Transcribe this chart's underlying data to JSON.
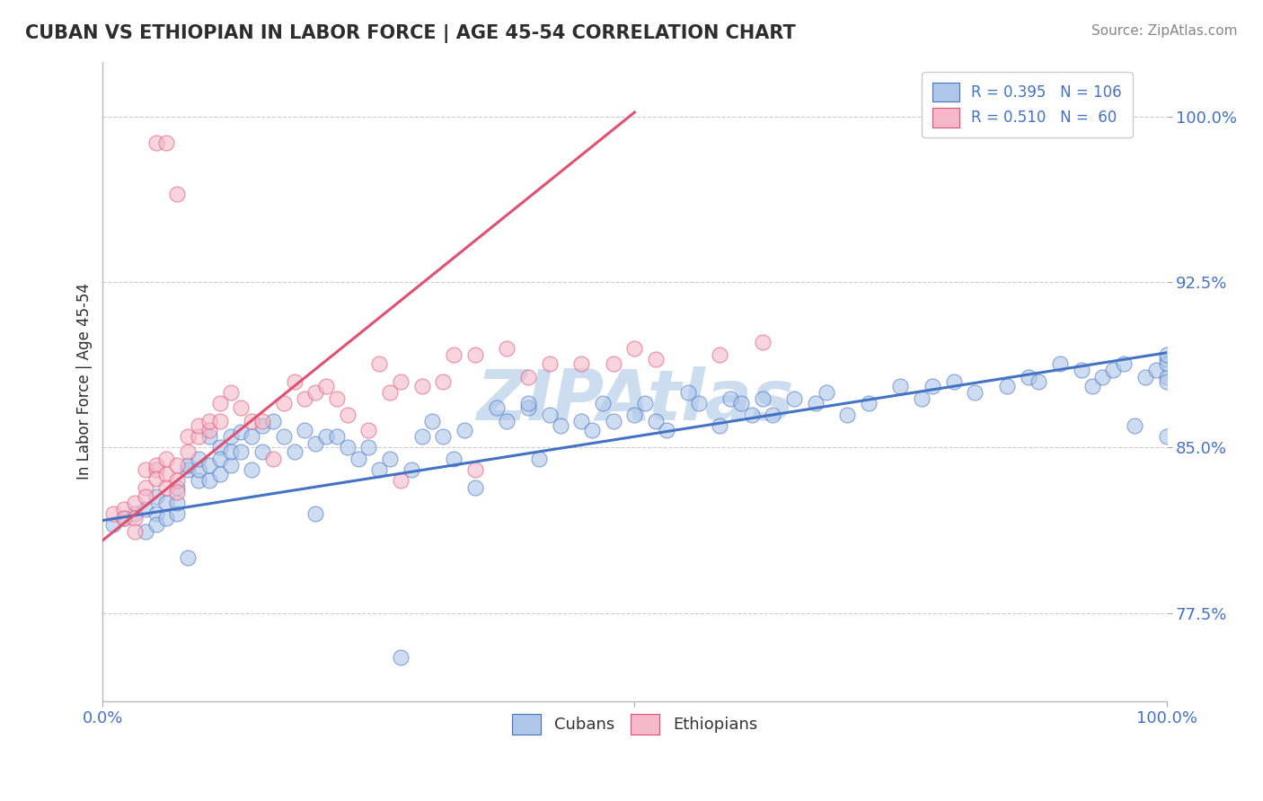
{
  "title": "CUBAN VS ETHIOPIAN IN LABOR FORCE | AGE 45-54 CORRELATION CHART",
  "source_text": "Source: ZipAtlas.com",
  "ylabel": "In Labor Force | Age 45-54",
  "xlim": [
    0.0,
    1.0
  ],
  "ylim": [
    0.735,
    1.025
  ],
  "ytick_labels": [
    "77.5%",
    "85.0%",
    "92.5%",
    "100.0%"
  ],
  "ytick_positions": [
    0.775,
    0.85,
    0.925,
    1.0
  ],
  "legend_r_cuban": "R = 0.395",
  "legend_n_cuban": "N = 106",
  "legend_r_ethiopian": "R = 0.510",
  "legend_n_ethiopian": "N =  60",
  "cuban_color": "#aec6e8",
  "ethiopian_color": "#f4b8ca",
  "cuban_line_color": "#4472c4",
  "ethiopian_line_color": "#e05070",
  "title_color": "#2d2d2d",
  "source_color": "#888888",
  "axis_label_color": "#2d2d2d",
  "tick_color": "#4472c4",
  "legend_text_color": "#4472c4",
  "watermark_color": "#ccddf0",
  "watermark_text": "ZIPAtlas",
  "background_color": "#ffffff",
  "grid_color": "#cccccc",
  "cuban_x": [
    0.01,
    0.02,
    0.03,
    0.04,
    0.04,
    0.05,
    0.05,
    0.05,
    0.06,
    0.06,
    0.07,
    0.07,
    0.07,
    0.08,
    0.08,
    0.08,
    0.09,
    0.09,
    0.09,
    0.1,
    0.1,
    0.1,
    0.11,
    0.11,
    0.11,
    0.12,
    0.12,
    0.12,
    0.13,
    0.13,
    0.14,
    0.14,
    0.15,
    0.15,
    0.16,
    0.17,
    0.18,
    0.19,
    0.2,
    0.2,
    0.21,
    0.22,
    0.23,
    0.24,
    0.25,
    0.26,
    0.27,
    0.28,
    0.29,
    0.3,
    0.31,
    0.32,
    0.33,
    0.34,
    0.35,
    0.37,
    0.38,
    0.4,
    0.4,
    0.41,
    0.42,
    0.43,
    0.45,
    0.46,
    0.47,
    0.48,
    0.5,
    0.51,
    0.52,
    0.53,
    0.55,
    0.56,
    0.58,
    0.59,
    0.6,
    0.61,
    0.62,
    0.63,
    0.65,
    0.67,
    0.68,
    0.7,
    0.72,
    0.75,
    0.77,
    0.78,
    0.8,
    0.82,
    0.85,
    0.87,
    0.88,
    0.9,
    0.92,
    0.93,
    0.94,
    0.95,
    0.96,
    0.97,
    0.98,
    0.99,
    1.0,
    1.0,
    1.0,
    1.0,
    1.0,
    1.0
  ],
  "cuban_y": [
    0.815,
    0.818,
    0.82,
    0.822,
    0.812,
    0.82,
    0.828,
    0.815,
    0.818,
    0.825,
    0.832,
    0.82,
    0.825,
    0.8,
    0.84,
    0.842,
    0.835,
    0.84,
    0.845,
    0.835,
    0.842,
    0.855,
    0.85,
    0.845,
    0.838,
    0.842,
    0.855,
    0.848,
    0.848,
    0.857,
    0.84,
    0.855,
    0.848,
    0.86,
    0.862,
    0.855,
    0.848,
    0.858,
    0.82,
    0.852,
    0.855,
    0.855,
    0.85,
    0.845,
    0.85,
    0.84,
    0.845,
    0.755,
    0.84,
    0.855,
    0.862,
    0.855,
    0.845,
    0.858,
    0.832,
    0.868,
    0.862,
    0.868,
    0.87,
    0.845,
    0.865,
    0.86,
    0.862,
    0.858,
    0.87,
    0.862,
    0.865,
    0.87,
    0.862,
    0.858,
    0.875,
    0.87,
    0.86,
    0.872,
    0.87,
    0.865,
    0.872,
    0.865,
    0.872,
    0.87,
    0.875,
    0.865,
    0.87,
    0.878,
    0.872,
    0.878,
    0.88,
    0.875,
    0.878,
    0.882,
    0.88,
    0.888,
    0.885,
    0.878,
    0.882,
    0.885,
    0.888,
    0.86,
    0.882,
    0.885,
    0.89,
    0.882,
    0.855,
    0.888,
    0.892,
    0.88
  ],
  "ethiopian_x": [
    0.01,
    0.02,
    0.02,
    0.03,
    0.03,
    0.03,
    0.04,
    0.04,
    0.04,
    0.05,
    0.05,
    0.05,
    0.05,
    0.06,
    0.06,
    0.06,
    0.06,
    0.07,
    0.07,
    0.07,
    0.07,
    0.08,
    0.08,
    0.09,
    0.09,
    0.1,
    0.1,
    0.11,
    0.11,
    0.12,
    0.13,
    0.14,
    0.15,
    0.16,
    0.17,
    0.18,
    0.19,
    0.2,
    0.21,
    0.22,
    0.23,
    0.25,
    0.26,
    0.27,
    0.28,
    0.3,
    0.32,
    0.33,
    0.35,
    0.38,
    0.4,
    0.42,
    0.45,
    0.48,
    0.5,
    0.52,
    0.58,
    0.62,
    0.35,
    0.28
  ],
  "ethiopian_y": [
    0.82,
    0.822,
    0.818,
    0.825,
    0.818,
    0.812,
    0.84,
    0.832,
    0.828,
    0.988,
    0.84,
    0.842,
    0.836,
    0.988,
    0.845,
    0.838,
    0.832,
    0.965,
    0.842,
    0.835,
    0.83,
    0.848,
    0.855,
    0.855,
    0.86,
    0.858,
    0.862,
    0.862,
    0.87,
    0.875,
    0.868,
    0.862,
    0.862,
    0.845,
    0.87,
    0.88,
    0.872,
    0.875,
    0.878,
    0.872,
    0.865,
    0.858,
    0.888,
    0.875,
    0.88,
    0.878,
    0.88,
    0.892,
    0.892,
    0.895,
    0.882,
    0.888,
    0.888,
    0.888,
    0.895,
    0.89,
    0.892,
    0.898,
    0.84,
    0.835
  ],
  "cuban_trend": [
    0.0,
    1.0,
    0.817,
    0.893
  ],
  "ethiopian_trend": [
    0.0,
    0.5,
    0.808,
    1.002
  ]
}
